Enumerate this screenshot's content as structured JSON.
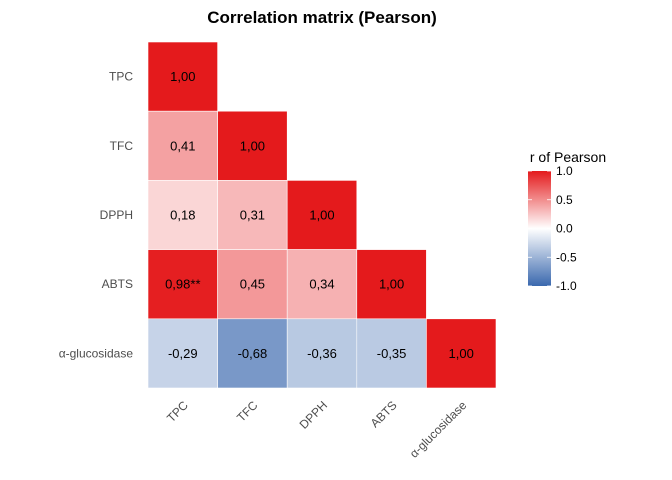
{
  "chart_data": {
    "type": "heatmap",
    "title": "Correlation matrix (Pearson)",
    "variables": [
      "TPC",
      "TFC",
      "DPPH",
      "ABTS",
      "α-glucosidase"
    ],
    "cells": [
      {
        "row": "TPC",
        "col": "TPC",
        "value": 1.0,
        "label": "1,00"
      },
      {
        "row": "TFC",
        "col": "TPC",
        "value": 0.41,
        "label": "0,41"
      },
      {
        "row": "TFC",
        "col": "TFC",
        "value": 1.0,
        "label": "1,00"
      },
      {
        "row": "DPPH",
        "col": "TPC",
        "value": 0.18,
        "label": "0,18"
      },
      {
        "row": "DPPH",
        "col": "TFC",
        "value": 0.31,
        "label": "0,31"
      },
      {
        "row": "DPPH",
        "col": "DPPH",
        "value": 1.0,
        "label": "1,00"
      },
      {
        "row": "ABTS",
        "col": "TPC",
        "value": 0.98,
        "label": "0,98**"
      },
      {
        "row": "ABTS",
        "col": "TFC",
        "value": 0.45,
        "label": "0,45"
      },
      {
        "row": "ABTS",
        "col": "DPPH",
        "value": 0.34,
        "label": "0,34"
      },
      {
        "row": "ABTS",
        "col": "ABTS",
        "value": 1.0,
        "label": "1,00"
      },
      {
        "row": "α-glucosidase",
        "col": "TPC",
        "value": -0.29,
        "label": "-0,29"
      },
      {
        "row": "α-glucosidase",
        "col": "TFC",
        "value": -0.68,
        "label": "-0,68"
      },
      {
        "row": "α-glucosidase",
        "col": "DPPH",
        "value": -0.36,
        "label": "-0,36"
      },
      {
        "row": "α-glucosidase",
        "col": "ABTS",
        "value": -0.35,
        "label": "-0,35"
      },
      {
        "row": "α-glucosidase",
        "col": "α-glucosidase",
        "value": 1.0,
        "label": "1,00"
      }
    ],
    "legend": {
      "title": "r of Pearson",
      "title_visible": "r of Pearson",
      "range": [
        -1.0,
        1.0
      ],
      "ticks": [
        {
          "value": 1.0,
          "label": "1.0"
        },
        {
          "value": 0.5,
          "label": "0.5"
        },
        {
          "value": 0.0,
          "label": "0.0"
        },
        {
          "value": -0.5,
          "label": "-0.5"
        },
        {
          "value": -1.0,
          "label": "-1.0"
        }
      ],
      "placement": "right",
      "colors": {
        "low": "#3a68ae",
        "mid": "#ffffff",
        "high": "#e41a1c"
      }
    },
    "grid": false
  }
}
